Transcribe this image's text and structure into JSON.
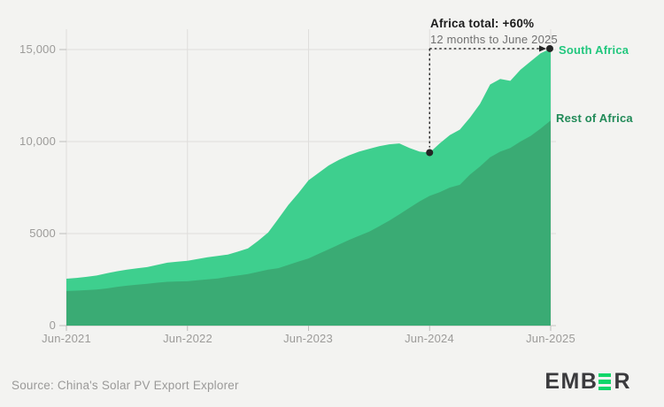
{
  "chart_data": {
    "type": "area",
    "stacked": true,
    "x_start": "Jun-2021",
    "x_end": "Jun-2025",
    "x_interval": "monthly",
    "x_tick_labels": [
      "Jun-2021",
      "Jun-2022",
      "Jun-2023",
      "Jun-2024",
      "Jun-2025"
    ],
    "y_tick_labels": [
      "0",
      "5000",
      "10,000",
      "15,000"
    ],
    "y_tick_values": [
      0,
      5000,
      10000,
      15000
    ],
    "ylim": [
      0,
      16100
    ],
    "grid": true,
    "series": [
      {
        "name": "South Africa",
        "area_color": "#3ecf8e",
        "label_color": "#22c77e",
        "values": [
          670,
          690,
          720,
          760,
          820,
          850,
          870,
          890,
          910,
          970,
          1040,
          1070,
          1110,
          1160,
          1200,
          1230,
          1210,
          1300,
          1390,
          1680,
          2020,
          2680,
          3260,
          3720,
          4250,
          4400,
          4550,
          4600,
          4600,
          4570,
          4500,
          4350,
          4150,
          3850,
          3250,
          2700,
          2350,
          2650,
          2850,
          3000,
          3100,
          3400,
          3950,
          3950,
          3650,
          3900,
          4050,
          4100,
          3900
        ]
      },
      {
        "name": "Rest of Africa",
        "area_color": "#3aab74",
        "label_color": "#218a58",
        "values": [
          1880,
          1900,
          1930,
          1960,
          2020,
          2100,
          2170,
          2220,
          2270,
          2330,
          2380,
          2400,
          2410,
          2460,
          2510,
          2560,
          2650,
          2720,
          2800,
          2920,
          3040,
          3120,
          3300,
          3480,
          3650,
          3900,
          4150,
          4400,
          4650,
          4880,
          5100,
          5400,
          5700,
          6050,
          6400,
          6750,
          7050,
          7250,
          7500,
          7650,
          8200,
          8650,
          9150,
          9450,
          9650,
          10000,
          10300,
          10700,
          11150
        ]
      }
    ],
    "annotation": {
      "title": "Africa total: +60%",
      "subtitle": "12 months to June 2025",
      "from_tick": "Jun-2024",
      "to_tick": "Jun-2025",
      "from_total": 9400,
      "to_total": 15050
    },
    "colors": {
      "background": "#f3f3f1",
      "gridline": "#dfdedc",
      "axis_line": "#c7c6c4",
      "tick_mark": "#bdbcba",
      "tick_text": "#9c9b99",
      "annotation_line": "#252525"
    }
  },
  "source": {
    "text": "Source: China's Solar PV Export Explorer"
  },
  "logo": {
    "alt": "EMBER",
    "left_letters": "EMB",
    "right_letters": "R",
    "bar_color": "#10d66a"
  }
}
